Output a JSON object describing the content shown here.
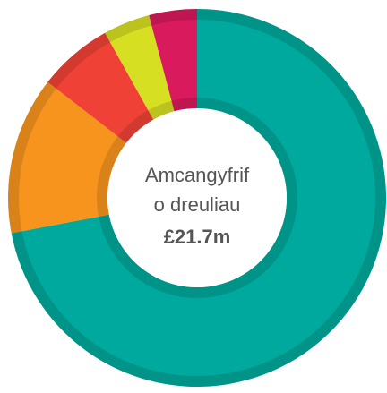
{
  "chart_data": {
    "type": "donut",
    "values": [
      72,
      13.5,
      6.4,
      4,
      4.1
    ],
    "colors": [
      "#00a99d",
      "#f7941d",
      "#ef4136",
      "#d7df23",
      "#d91a5c"
    ],
    "center_text": [
      "Amcangyfrif",
      "o dreuliau",
      "£21.7m"
    ]
  }
}
